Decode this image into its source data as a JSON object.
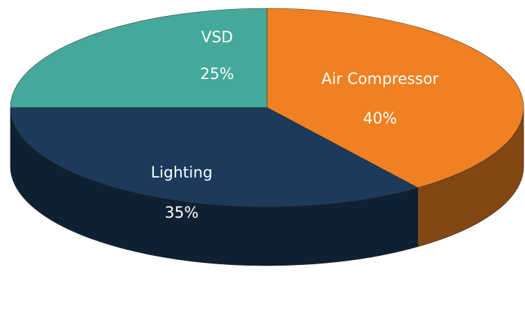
{
  "chart_data": {
    "type": "pie",
    "categories": [
      "Air Compressor",
      "Lighting",
      "VSD"
    ],
    "values": [
      40,
      35,
      25
    ],
    "value_labels": [
      "40%",
      "35%",
      "25%"
    ],
    "colors": [
      "#f08122",
      "#1b3a5c",
      "#44a99b"
    ]
  }
}
